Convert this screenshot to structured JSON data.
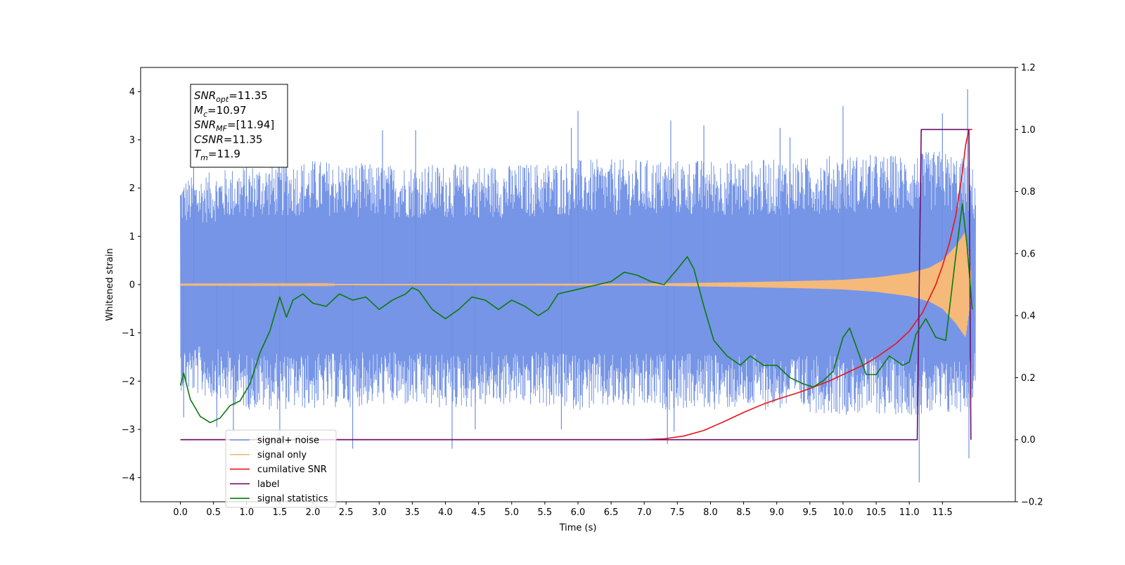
{
  "chart_data": {
    "type": "line",
    "title": "",
    "xlabel": "Time (s)",
    "ylabel": "Whitened strain",
    "xlim": [
      -0.6,
      12.6
    ],
    "ylim": [
      -4.5,
      4.5
    ],
    "y2lim": [
      -0.2,
      1.2
    ],
    "grid": false,
    "legend_placement": "lower-left",
    "x_ticks": [
      0.0,
      0.5,
      1.0,
      1.5,
      2.0,
      2.5,
      3.0,
      3.5,
      4.0,
      4.5,
      5.0,
      5.5,
      6.0,
      6.5,
      7.0,
      7.5,
      8.0,
      8.5,
      9.0,
      9.5,
      10.0,
      10.5,
      11.0,
      11.5
    ],
    "x_tick_labels": [
      "0.0",
      "0.5",
      "1.0",
      "1.5",
      "2.0",
      "2.5",
      "3.0",
      "3.5",
      "4.0",
      "4.5",
      "5.0",
      "5.5",
      "6.0",
      "6.5",
      "7.0",
      "7.5",
      "8.0",
      "8.5",
      "9.0",
      "9.5",
      "10.0",
      "10.5",
      "11.0",
      "11.5"
    ],
    "y_ticks": [
      4,
      3,
      2,
      1,
      0,
      -1,
      -2,
      -3,
      -4
    ],
    "y_tick_labels": [
      "4",
      "3",
      "2",
      "1",
      "0",
      "−1",
      "−2",
      "−3",
      "−4"
    ],
    "y2_ticks": [
      1.2,
      1.0,
      0.8,
      0.6,
      0.4,
      0.2,
      0.0,
      -0.2
    ],
    "y2_tick_labels": [
      "1.2",
      "1.0",
      "0.8",
      "0.6",
      "0.4",
      "0.2",
      "0.0",
      "−0.2"
    ],
    "noise_envelope": {
      "x": [
        0.0,
        1.0,
        2.0,
        3.0,
        4.0,
        5.0,
        6.0,
        7.0,
        8.0,
        9.0,
        10.0,
        11.0,
        11.5,
        11.9,
        12.0
      ],
      "upper": [
        2.2,
        2.5,
        2.6,
        2.5,
        2.5,
        2.5,
        2.6,
        2.6,
        2.6,
        2.6,
        2.7,
        2.7,
        2.8,
        2.6,
        2.3
      ],
      "lower": [
        -2.2,
        -2.6,
        -2.6,
        -2.5,
        -2.6,
        -2.5,
        -2.6,
        -2.6,
        -2.6,
        -2.6,
        -2.7,
        -2.7,
        -2.8,
        -2.6,
        -2.3
      ],
      "spikes": [
        [
          0.05,
          -2.75
        ],
        [
          0.2,
          2.5
        ],
        [
          0.55,
          -2.95
        ],
        [
          0.8,
          -3.05
        ],
        [
          1.5,
          -3.2
        ],
        [
          1.6,
          3.1
        ],
        [
          2.6,
          -3.4
        ],
        [
          3.05,
          3.2
        ],
        [
          3.55,
          3.2
        ],
        [
          4.1,
          -3.4
        ],
        [
          4.45,
          -3.0
        ],
        [
          5.75,
          -3.0
        ],
        [
          5.9,
          3.25
        ],
        [
          6.0,
          3.6
        ],
        [
          7.35,
          -3.3
        ],
        [
          7.4,
          3.4
        ],
        [
          7.45,
          -3.05
        ],
        [
          7.9,
          3.3
        ],
        [
          9.05,
          3.25
        ],
        [
          9.2,
          3.05
        ],
        [
          10.0,
          3.7
        ],
        [
          11.15,
          -4.1
        ],
        [
          11.5,
          3.55
        ],
        [
          11.88,
          4.05
        ],
        [
          11.9,
          -3.6
        ]
      ]
    },
    "series": [
      {
        "name": "signal+ noise",
        "color": "#6f8fe5",
        "axis": "left",
        "render": "noise"
      },
      {
        "name": "signal only",
        "color": "#f5b97a",
        "axis": "left",
        "render": "chirp",
        "x_end": 11.93,
        "amplitude": {
          "x": [
            0.0,
            7.0,
            8.5,
            9.5,
            10.0,
            10.5,
            11.0,
            11.3,
            11.5,
            11.7,
            11.85,
            11.93
          ],
          "y": [
            0.01,
            0.02,
            0.05,
            0.08,
            0.1,
            0.15,
            0.24,
            0.35,
            0.5,
            0.8,
            1.1,
            0.3
          ]
        }
      },
      {
        "name": "cumilative SNR",
        "color": "#e8141a",
        "axis": "right",
        "x": [
          0.0,
          7.0,
          7.3,
          7.6,
          7.9,
          8.2,
          8.5,
          8.8,
          9.0,
          9.3,
          9.5,
          9.8,
          10.0,
          10.3,
          10.5,
          10.8,
          11.0,
          11.2,
          11.4,
          11.5,
          11.6,
          11.7,
          11.8,
          11.85,
          11.9,
          11.95
        ],
        "y": [
          0.0,
          0.0,
          0.003,
          0.012,
          0.03,
          0.058,
          0.088,
          0.115,
          0.13,
          0.15,
          0.165,
          0.19,
          0.21,
          0.24,
          0.265,
          0.31,
          0.35,
          0.41,
          0.5,
          0.56,
          0.63,
          0.72,
          0.86,
          0.95,
          1.0,
          1.0
        ]
      },
      {
        "name": "label",
        "color": "#6b0f6b",
        "axis": "right",
        "x": [
          0.0,
          11.12,
          11.18,
          11.85,
          11.9,
          11.93
        ],
        "y": [
          0.0,
          0.0,
          1.0,
          1.0,
          1.0,
          0.0
        ]
      },
      {
        "name": "signal statistics",
        "color": "#0b7a0b",
        "axis": "right",
        "x": [
          0.0,
          0.05,
          0.15,
          0.3,
          0.45,
          0.6,
          0.75,
          0.9,
          1.05,
          1.2,
          1.35,
          1.5,
          1.6,
          1.7,
          1.85,
          2.0,
          2.2,
          2.4,
          2.6,
          2.8,
          3.0,
          3.2,
          3.4,
          3.5,
          3.6,
          3.8,
          4.0,
          4.2,
          4.4,
          4.6,
          4.8,
          5.0,
          5.2,
          5.4,
          5.55,
          5.7,
          5.9,
          6.1,
          6.3,
          6.5,
          6.7,
          6.9,
          7.1,
          7.3,
          7.5,
          7.65,
          7.75,
          7.9,
          8.05,
          8.25,
          8.45,
          8.6,
          8.8,
          9.0,
          9.2,
          9.4,
          9.55,
          9.7,
          9.85,
          10.0,
          10.1,
          10.2,
          10.35,
          10.5,
          10.7,
          10.9,
          11.0,
          11.1,
          11.25,
          11.4,
          11.55,
          11.7,
          11.8,
          11.87,
          11.95
        ],
        "y": [
          0.175,
          0.215,
          0.13,
          0.075,
          0.055,
          0.07,
          0.11,
          0.125,
          0.18,
          0.28,
          0.35,
          0.46,
          0.395,
          0.45,
          0.47,
          0.44,
          0.43,
          0.47,
          0.45,
          0.46,
          0.42,
          0.45,
          0.47,
          0.49,
          0.48,
          0.42,
          0.39,
          0.42,
          0.46,
          0.45,
          0.42,
          0.45,
          0.43,
          0.4,
          0.42,
          0.47,
          0.48,
          0.49,
          0.5,
          0.51,
          0.54,
          0.53,
          0.51,
          0.5,
          0.55,
          0.59,
          0.55,
          0.43,
          0.32,
          0.27,
          0.24,
          0.27,
          0.24,
          0.24,
          0.2,
          0.18,
          0.17,
          0.19,
          0.22,
          0.33,
          0.36,
          0.3,
          0.21,
          0.21,
          0.27,
          0.24,
          0.25,
          0.34,
          0.39,
          0.33,
          0.32,
          0.59,
          0.76,
          0.63,
          0.42
        ]
      }
    ]
  },
  "annotation": {
    "lines": [
      {
        "main": "SNR",
        "sub": "opt",
        "rest": "=11.35"
      },
      {
        "main": "M",
        "sub": "c",
        "rest": "=10.97"
      },
      {
        "main": "SNR",
        "sub": "MF",
        "rest": "=[11.94]"
      },
      {
        "main": "CSNR",
        "sub": "",
        "rest": "=11.35"
      },
      {
        "main": "T",
        "sub": "m",
        "rest": "=11.9"
      }
    ]
  },
  "legend": {
    "items": [
      {
        "label": "signal+ noise",
        "color": "#6f8fe5"
      },
      {
        "label": "signal only",
        "color": "#f5b97a"
      },
      {
        "label": "cumilative SNR",
        "color": "#e8141a"
      },
      {
        "label": "label",
        "color": "#6b0f6b"
      },
      {
        "label": "signal statistics",
        "color": "#0b7a0b"
      }
    ]
  }
}
